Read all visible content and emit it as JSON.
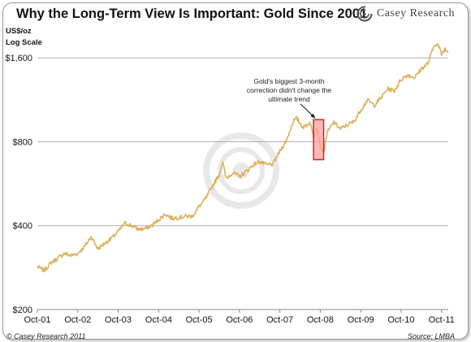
{
  "header": {
    "title": "Why the Long-Term View Is Important: Gold Since 2001",
    "logo_text": "Casey Research"
  },
  "footer": {
    "copyright": "© Casey Research 2011",
    "source": "Source: LMBA"
  },
  "colors": {
    "line": "#dbb15a",
    "grid": "#b0b0b0",
    "highlight_border": "#cc2222",
    "highlight_fill": "#ff9f9f"
  },
  "chart_data": {
    "type": "line",
    "title": "Why the Long-Term View Is Important: Gold Since 2001",
    "ylabel_lines": [
      "US$/oz",
      "Log Scale"
    ],
    "y_scale": "log",
    "ylim": [
      200,
      2000
    ],
    "y_ticks": [
      200,
      400,
      800,
      1600
    ],
    "y_tick_labels": [
      "$200",
      "$400",
      "$800",
      "$1,600"
    ],
    "xlim": [
      "2001-10",
      "2011-12"
    ],
    "x_ticks": [
      "2001-10",
      "2002-10",
      "2003-10",
      "2004-10",
      "2005-10",
      "2006-10",
      "2007-10",
      "2008-10",
      "2009-10",
      "2010-10",
      "2011-10"
    ],
    "x_tick_labels": [
      "Oct-01",
      "Oct-02",
      "Oct-03",
      "Oct-04",
      "Oct-05",
      "Oct-06",
      "Oct-07",
      "Oct-08",
      "Oct-09",
      "Oct-10",
      "Oct-11"
    ],
    "grid": "horizontal",
    "series": [
      {
        "x": [
          "2001-10",
          "2001-12",
          "2002-02",
          "2002-04",
          "2002-06",
          "2002-08",
          "2002-10",
          "2002-12",
          "2003-02",
          "2003-04",
          "2003-06",
          "2003-08",
          "2003-10",
          "2003-12",
          "2004-02",
          "2004-04",
          "2004-06",
          "2004-08",
          "2004-10",
          "2004-12",
          "2005-02",
          "2005-04",
          "2005-06",
          "2005-08",
          "2005-10",
          "2005-12",
          "2006-02",
          "2006-04",
          "2006-05",
          "2006-06",
          "2006-08",
          "2006-10",
          "2006-12",
          "2007-02",
          "2007-04",
          "2007-06",
          "2007-08",
          "2007-10",
          "2007-12",
          "2008-02",
          "2008-03",
          "2008-05",
          "2008-07",
          "2008-08",
          "2008-09",
          "2008-10",
          "2008-11",
          "2008-12",
          "2009-02",
          "2009-04",
          "2009-06",
          "2009-08",
          "2009-10",
          "2009-12",
          "2010-02",
          "2010-04",
          "2010-06",
          "2010-08",
          "2010-10",
          "2010-12",
          "2011-02",
          "2011-04",
          "2011-06",
          "2011-08",
          "2011-09",
          "2011-10",
          "2011-11",
          "2011-12"
        ],
        "values": [
          285,
          276,
          294,
          305,
          318,
          312,
          318,
          336,
          365,
          330,
          346,
          360,
          381,
          408,
          400,
          388,
          390,
          400,
          420,
          440,
          425,
          428,
          432,
          432,
          468,
          500,
          555,
          610,
          680,
          590,
          620,
          600,
          625,
          660,
          680,
          660,
          665,
          740,
          810,
          950,
          970,
          900,
          940,
          830,
          910,
          770,
          730,
          860,
          940,
          890,
          920,
          945,
          1040,
          1130,
          1080,
          1150,
          1240,
          1220,
          1340,
          1390,
          1360,
          1460,
          1530,
          1800,
          1780,
          1650,
          1720,
          1680
        ]
      }
    ],
    "annotations": [
      {
        "lines": [
          "Gold's biggest 3-month",
          "correction didn't change the",
          "ultimate trend"
        ],
        "range": [
          "2008-08",
          "2008-11"
        ],
        "range_values": [
          690,
          960
        ]
      }
    ]
  }
}
